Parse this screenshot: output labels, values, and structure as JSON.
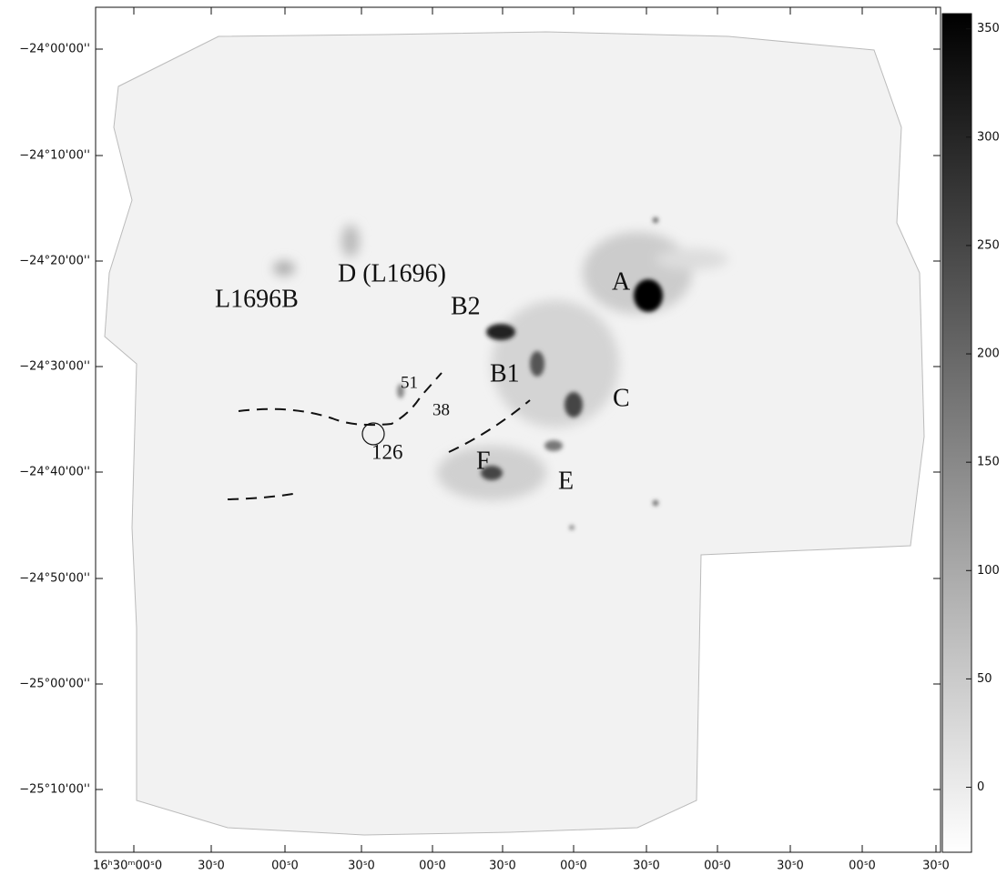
{
  "y_axis": {
    "ticks": [
      "−24°00'00''",
      "−24°10'00''",
      "−24°20'00''",
      "−24°30'00''",
      "−24°40'00''",
      "−24°50'00''",
      "−25°00'00''",
      "−25°10'00''"
    ]
  },
  "x_axis": {
    "ticks": [
      "16ʰ30ᵐ00ˢ0",
      "30ˢ0",
      "00ˢ0",
      "30ˢ0",
      "00ˢ0",
      "30ˢ0",
      "00ˢ0",
      "30ˢ0",
      "00ˢ0",
      "30ˢ0",
      "00ˢ0",
      "30ˢ0"
    ]
  },
  "colorbar": {
    "range": [
      -30,
      357
    ],
    "ticks": [
      350,
      300,
      250,
      200,
      150,
      100,
      50,
      0
    ]
  },
  "labels": {
    "a": "A",
    "b2": "B2",
    "b1": "B1",
    "c": "C",
    "d": "D (L1696)",
    "l1696b": "L1696B",
    "f": "F",
    "e": "E",
    "n51": "51",
    "n38": "38",
    "n126": "126"
  }
}
